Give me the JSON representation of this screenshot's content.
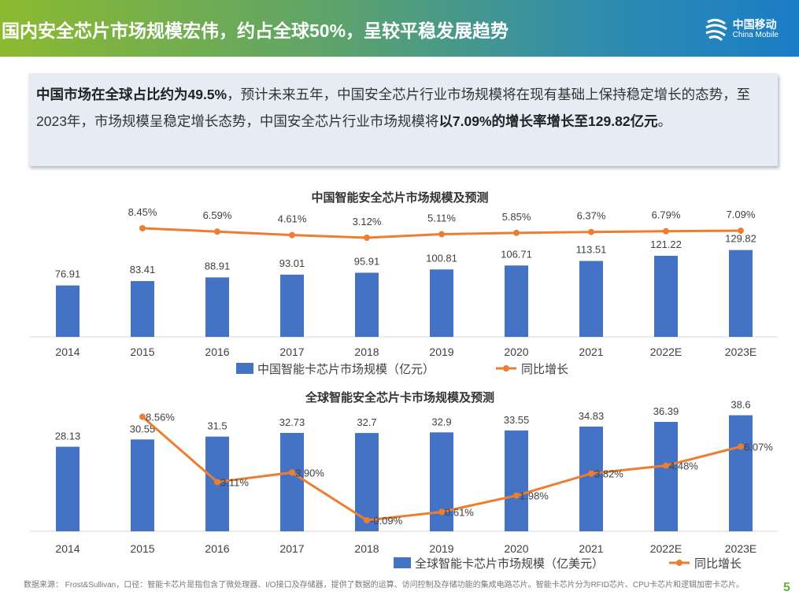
{
  "header": {
    "title": "国内安全芯片市场规模宏伟，约占全球50%，呈较平稳发展趋势",
    "logo_cn": "中国移动",
    "logo_en": "China Mobile",
    "brand_color": "#1a7dc6"
  },
  "summary": {
    "b1": "中国市场在全球占比约为49.5%",
    "t1": "，预计未来五年，中国安全芯片行业市场规模将在现有基础上保持稳定增长的态势，至2023年，市场规模呈稳定增长态势，中国安全芯片行业市场规模将",
    "b2": "以7.09%的增长率增长至129.82亿元",
    "t2": "。"
  },
  "chart_data": [
    {
      "type": "bar+line",
      "title": "中国智能安全芯片市场规模及预测",
      "categories": [
        "2014",
        "2015",
        "2016",
        "2017",
        "2018",
        "2019",
        "2020",
        "2021",
        "2022E",
        "2023E"
      ],
      "series": [
        {
          "name": "中国智能卡芯片市场规模（亿元）",
          "type": "bar",
          "color": "#4472c4",
          "values": [
            76.91,
            83.41,
            88.91,
            93.01,
            95.91,
            100.81,
            106.71,
            113.51,
            121.22,
            129.82
          ]
        },
        {
          "name": "同比增长",
          "type": "line",
          "color": "#ed7d31",
          "values": [
            null,
            8.45,
            6.59,
            4.61,
            3.12,
            5.11,
            5.85,
            6.37,
            6.79,
            7.09
          ],
          "labels": [
            "",
            "8.45%",
            "6.59%",
            "4.61%",
            "3.12%",
            "5.11%",
            "5.85%",
            "6.37%",
            "6.79%",
            "7.09%"
          ]
        }
      ],
      "legend": "bottom"
    },
    {
      "type": "bar+line",
      "title": "全球智能安全芯片卡市场规模及预测",
      "categories": [
        "2014",
        "2015",
        "2016",
        "2017",
        "2018",
        "2019",
        "2020",
        "2021",
        "2022E",
        "2023E"
      ],
      "series": [
        {
          "name": "全球智能卡芯片市场规模（亿美元）",
          "type": "bar",
          "color": "#4472c4",
          "values": [
            28.13,
            30.55,
            31.5,
            32.73,
            32.7,
            32.9,
            33.55,
            34.83,
            36.39,
            38.6
          ]
        },
        {
          "name": "同比增长",
          "type": "line",
          "color": "#ed7d31",
          "values": [
            null,
            8.56,
            3.11,
            3.9,
            -0.09,
            0.61,
            1.98,
            3.82,
            4.48,
            6.07
          ],
          "labels": [
            "",
            "8.56%",
            "3.11%",
            "3.90%",
            "-0.09%",
            "0.61%",
            "1.98%",
            "3.82%",
            "4.48%",
            "6.07%"
          ]
        }
      ],
      "legend": "bottom"
    }
  ],
  "footer": {
    "source": "数据来源： Frost&Sullivan，口径：智能卡芯片是指包含了微处理器、I/O接口及存储器，提供了数据的运算、访问控制及存储功能的集成电路芯片。智能卡芯片分为RFID芯片、CPU卡芯片和逻辑加密卡芯片。",
    "page": "5"
  }
}
